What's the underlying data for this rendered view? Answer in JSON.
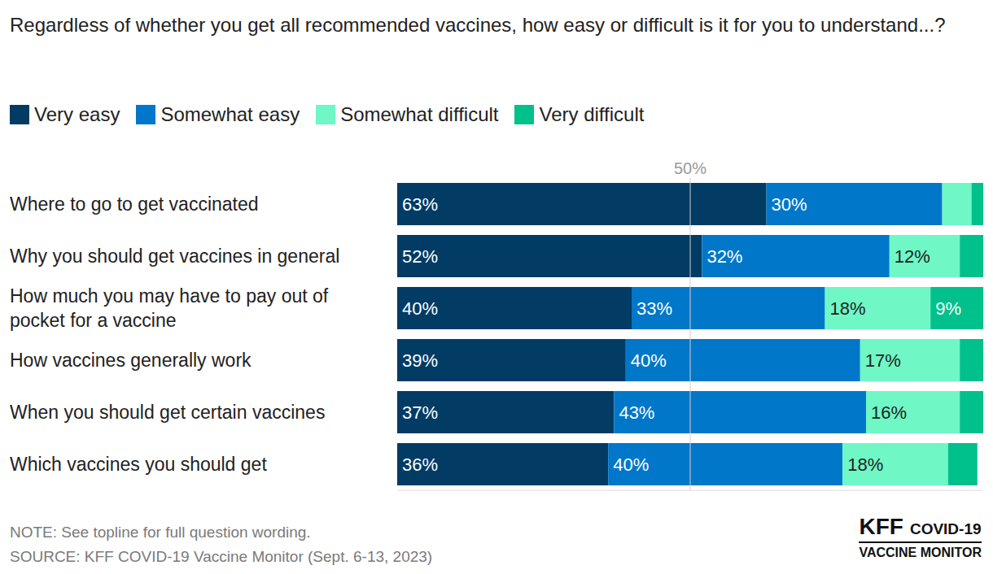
{
  "chart_data": {
    "type": "bar",
    "orientation": "horizontal",
    "stacked": true,
    "title": "Regardless of whether you get all recommended vaccines, how easy or difficult is it for you to understand...?",
    "categories": [
      "Where to go to get vaccinated",
      "Why you should get vaccines in general",
      "How much you may have to pay out of pocket for a vaccine",
      "How vaccines generally work",
      "When you should get certain vaccines",
      "Which vaccines you should get"
    ],
    "series": [
      {
        "name": "Very easy",
        "color": "#023b64",
        "values": [
          63,
          52,
          40,
          39,
          37,
          36
        ],
        "value_labels": [
          "63%",
          "52%",
          "40%",
          "39%",
          "37%",
          "36%"
        ]
      },
      {
        "name": "Somewhat easy",
        "color": "#0077c8",
        "values": [
          30,
          32,
          33,
          40,
          43,
          40
        ],
        "value_labels": [
          "30%",
          "32%",
          "33%",
          "40%",
          "43%",
          "40%"
        ]
      },
      {
        "name": "Somewhat difficult",
        "color": "#6ff7c6",
        "values": [
          5,
          12,
          18,
          17,
          16,
          18
        ],
        "value_labels": [
          null,
          "12%",
          "18%",
          "17%",
          "16%",
          "18%"
        ]
      },
      {
        "name": "Very difficult",
        "color": "#00c08b",
        "values": [
          2,
          4,
          9,
          4,
          4,
          5
        ],
        "value_labels": [
          null,
          null,
          "9%",
          null,
          null,
          null
        ]
      }
    ],
    "xlim": [
      0,
      100
    ],
    "xticks": [
      0,
      50,
      100
    ],
    "tick_labels": "y",
    "grid": false,
    "legend": "top",
    "data_labels": true,
    "reference_line": {
      "value": 50,
      "label": "50%"
    },
    "note": "NOTE: See topline for full question wording.",
    "source": "SOURCE: KFF COVID-19 Vaccine Monitor (Sept. 6-13, 2023)",
    "logo": {
      "name": "KFF",
      "label": "COVID-19",
      "sub": "VACCINE MONITOR"
    }
  }
}
